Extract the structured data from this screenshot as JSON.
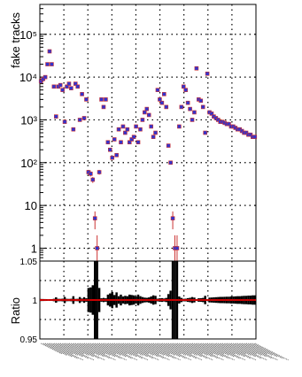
{
  "chart_data": [
    {
      "type": "scatter",
      "ylabel": "fake tracks",
      "yscale": "log",
      "ylim": [
        0.5,
        500000
      ],
      "grid": true,
      "xticks_count": 9,
      "yticks": [
        {
          "value": 1,
          "label": "1"
        },
        {
          "value": 10,
          "label": "10"
        },
        {
          "value": 100,
          "label": "10²"
        },
        {
          "value": 1000,
          "label": "10³"
        },
        {
          "value": 10000,
          "label": "10⁴"
        },
        {
          "value": 100000,
          "label": "10⁵"
        }
      ],
      "x": [
        0.5,
        1.5,
        2.5,
        3.5,
        4.5,
        5.5,
        6.5,
        7.5,
        8.5,
        9.5,
        10.5,
        11.5,
        12.5,
        13.5,
        14.5,
        15.5,
        16.5,
        17.5,
        18.5,
        19.5,
        20.5,
        21.5,
        22.5,
        23.5,
        24.5,
        25.5,
        26.5,
        27.5,
        28.5,
        29.5,
        30.5,
        31.5,
        32.5,
        33.5,
        34.5,
        35.5,
        36.5,
        37.5,
        38.5,
        39.5,
        40.5,
        41.5,
        42.5,
        43.5,
        44.5,
        45.5,
        46.5,
        47.5,
        48.5,
        49.5,
        50.5,
        51.5,
        52.5,
        53.5,
        54.5,
        55.5,
        56.5,
        57.5,
        58.5,
        59.5,
        60.5,
        61.5,
        62.5,
        63.5,
        64.5,
        65.5,
        66.5,
        67.5,
        68.5,
        69.5,
        70.5,
        71.5,
        72.5,
        73.5,
        74.5,
        75.5,
        76.5,
        77.5,
        78.5,
        79.5,
        80.5,
        81.5,
        82.5,
        83.5,
        84.5,
        85.5,
        86.5,
        87.5,
        88.5,
        89.5,
        90.5,
        91.5,
        92.5,
        93.5,
        94.5,
        95.5,
        96.5,
        97.5,
        98.5,
        99.5
      ],
      "values": [
        8000,
        9000,
        10000,
        20000,
        40000,
        20000,
        6000,
        1200,
        6000,
        6500,
        5000,
        900,
        6000,
        7000,
        5500,
        600,
        7000,
        6000,
        1000,
        4000,
        1100,
        3000,
        60,
        55,
        40,
        5,
        1,
        60,
        3000,
        2000,
        3000,
        300,
        200,
        130,
        350,
        150,
        600,
        300,
        700,
        500,
        600,
        300,
        350,
        400,
        700,
        300,
        600,
        1000,
        1500,
        1800,
        1300,
        700,
        400,
        500,
        5000,
        3000,
        2500,
        4000,
        2000,
        250,
        100,
        5,
        1,
        1,
        700,
        2000,
        6000,
        5000,
        2500,
        1800,
        1000,
        1500,
        16000,
        3000,
        2800,
        2000,
        500,
        12000,
        1500,
        1400,
        1200,
        1100,
        1000,
        900,
        900,
        850,
        800,
        800,
        700,
        700,
        650,
        600,
        600,
        550,
        500,
        500,
        450,
        450,
        400,
        400
      ],
      "marker_color": "#3333cc",
      "error_color": "#cc3333"
    },
    {
      "type": "scatter",
      "ylabel": "Ratio",
      "ylim": [
        0.95,
        1.05
      ],
      "grid": true,
      "yticks": [
        {
          "value": 0.95,
          "label": "0.95"
        },
        {
          "value": 1,
          "label": "1"
        },
        {
          "value": 1.05,
          "label": "1.05"
        }
      ],
      "ratio_value": 1.0,
      "marker_color": "#cc0000",
      "band_color": "#000000"
    }
  ]
}
